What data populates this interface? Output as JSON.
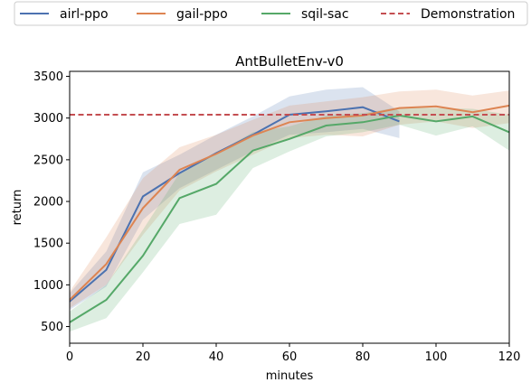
{
  "chart_data": {
    "type": "line",
    "title": "AntBulletEnv-v0",
    "xlabel": "minutes",
    "ylabel": "return",
    "xlim": [
      0,
      120
    ],
    "ylim": [
      300,
      3560
    ],
    "xticks": [
      0,
      20,
      40,
      60,
      80,
      100,
      120
    ],
    "yticks": [
      500,
      1000,
      1500,
      2000,
      2500,
      3000,
      3500
    ],
    "legend_position": "top",
    "grid": false,
    "series": [
      {
        "name": "airl-ppo",
        "color": "#4c72b0",
        "x": [
          0,
          10,
          20,
          30,
          40,
          50,
          60,
          70,
          80,
          90
        ],
        "values": [
          800,
          1180,
          2060,
          2340,
          2580,
          2800,
          3040,
          3080,
          3130,
          2960
        ],
        "lower": [
          700,
          980,
          1780,
          2160,
          2380,
          2600,
          2800,
          2830,
          2870,
          2760
        ],
        "upper": [
          900,
          1400,
          2350,
          2560,
          2800,
          3020,
          3260,
          3340,
          3370,
          3080
        ]
      },
      {
        "name": "gail-ppo",
        "color": "#dd8452",
        "x": [
          0,
          10,
          20,
          30,
          40,
          50,
          60,
          70,
          80,
          90,
          100,
          110,
          120
        ],
        "values": [
          820,
          1250,
          1920,
          2380,
          2570,
          2790,
          2950,
          3000,
          3030,
          3120,
          3140,
          3070,
          3150
        ],
        "lower": [
          720,
          1000,
          1600,
          2130,
          2360,
          2560,
          2760,
          2800,
          2780,
          2920,
          2960,
          2880,
          2940
        ],
        "upper": [
          920,
          1570,
          2280,
          2650,
          2800,
          2980,
          3150,
          3200,
          3250,
          3320,
          3340,
          3270,
          3330
        ]
      },
      {
        "name": "sqil-sac",
        "color": "#55a868",
        "x": [
          0,
          10,
          20,
          30,
          40,
          50,
          60,
          70,
          80,
          90,
          100,
          110,
          120
        ],
        "values": [
          550,
          820,
          1350,
          2040,
          2210,
          2610,
          2750,
          2910,
          2950,
          3030,
          2960,
          3020,
          2830
        ],
        "lower": [
          440,
          600,
          1150,
          1730,
          1840,
          2400,
          2600,
          2780,
          2830,
          2920,
          2790,
          2900,
          2610
        ],
        "upper": [
          680,
          1000,
          1660,
          2340,
          2580,
          2830,
          2900,
          3030,
          3060,
          3130,
          3120,
          3110,
          3040
        ]
      },
      {
        "name": "Demonstration",
        "color": "#c44e52",
        "style": "dashed",
        "x": [
          0,
          120
        ],
        "values": [
          3040,
          3040
        ]
      }
    ]
  }
}
